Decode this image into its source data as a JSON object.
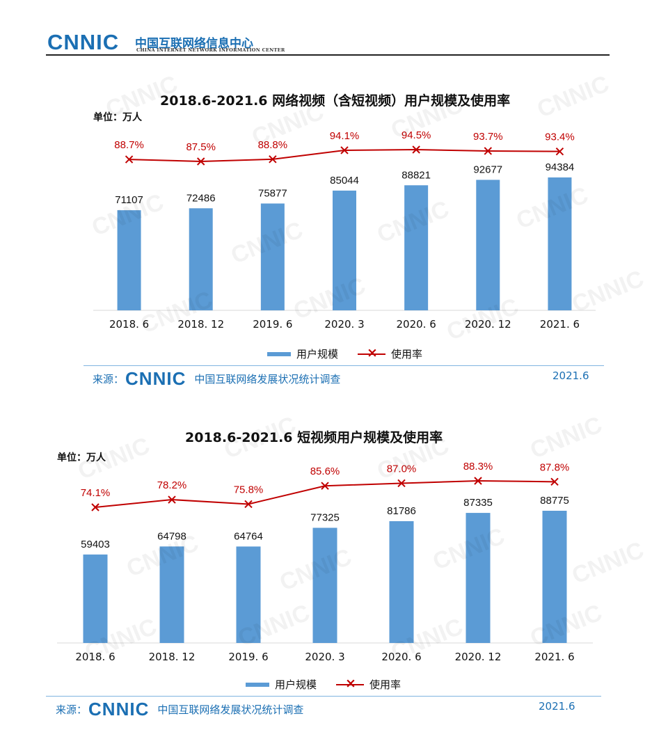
{
  "header": {
    "logo_text": "CNNIC",
    "org_name_cn": "中国互联网络信息中心",
    "org_name_en": "CHINA INTERNET NETWORK INFORMATION CENTER"
  },
  "colors": {
    "bar": "#5b9bd5",
    "line": "#c00000",
    "brand": "#1b6fb3"
  },
  "watermark_text": "CNNIC",
  "chart_data": [
    {
      "type": "bar",
      "title": "2018.6-2021.6 网络视频（含短视频）用户规模及使用率",
      "unit": "单位：万人",
      "categories": [
        "2018. 6",
        "2018. 12",
        "2019. 6",
        "2020. 3",
        "2020. 6",
        "2020. 12",
        "2021. 6"
      ],
      "series": [
        {
          "name": "用户规模",
          "type": "bar",
          "values": [
            71107,
            72486,
            75877,
            85044,
            88821,
            92677,
            94384
          ]
        },
        {
          "name": "使用率",
          "type": "line",
          "values": [
            88.7,
            87.5,
            88.8,
            94.1,
            94.5,
            93.7,
            93.4
          ],
          "labels": [
            "88.7%",
            "87.5%",
            "88.8%",
            "94.1%",
            "94.5%",
            "93.7%",
            "93.4%"
          ]
        }
      ],
      "legend": [
        "用户规模",
        "使用率"
      ],
      "legend_position": "bottom",
      "source_label": "来源：",
      "source_logo": "CNNIC",
      "source_text": "中国互联网络发展状况统计调查",
      "source_date": "2021.6"
    },
    {
      "type": "bar",
      "title": "2018.6-2021.6 短视频用户规模及使用率",
      "unit": "单位：万人",
      "categories": [
        "2018. 6",
        "2018. 12",
        "2019. 6",
        "2020. 3",
        "2020. 6",
        "2020. 12",
        "2021. 6"
      ],
      "series": [
        {
          "name": "用户规模",
          "type": "bar",
          "values": [
            59403,
            64798,
            64764,
            77325,
            81786,
            87335,
            88775
          ]
        },
        {
          "name": "使用率",
          "type": "line",
          "values": [
            74.1,
            78.2,
            75.8,
            85.6,
            87.0,
            88.3,
            87.8
          ],
          "labels": [
            "74.1%",
            "78.2%",
            "75.8%",
            "85.6%",
            "87.0%",
            "88.3%",
            "87.8%"
          ]
        }
      ],
      "legend": [
        "用户规模",
        "使用率"
      ],
      "legend_position": "bottom",
      "source_label": "来源：",
      "source_logo": "CNNIC",
      "source_text": "中国互联网络发展状况统计调查",
      "source_date": "2021.6"
    }
  ]
}
